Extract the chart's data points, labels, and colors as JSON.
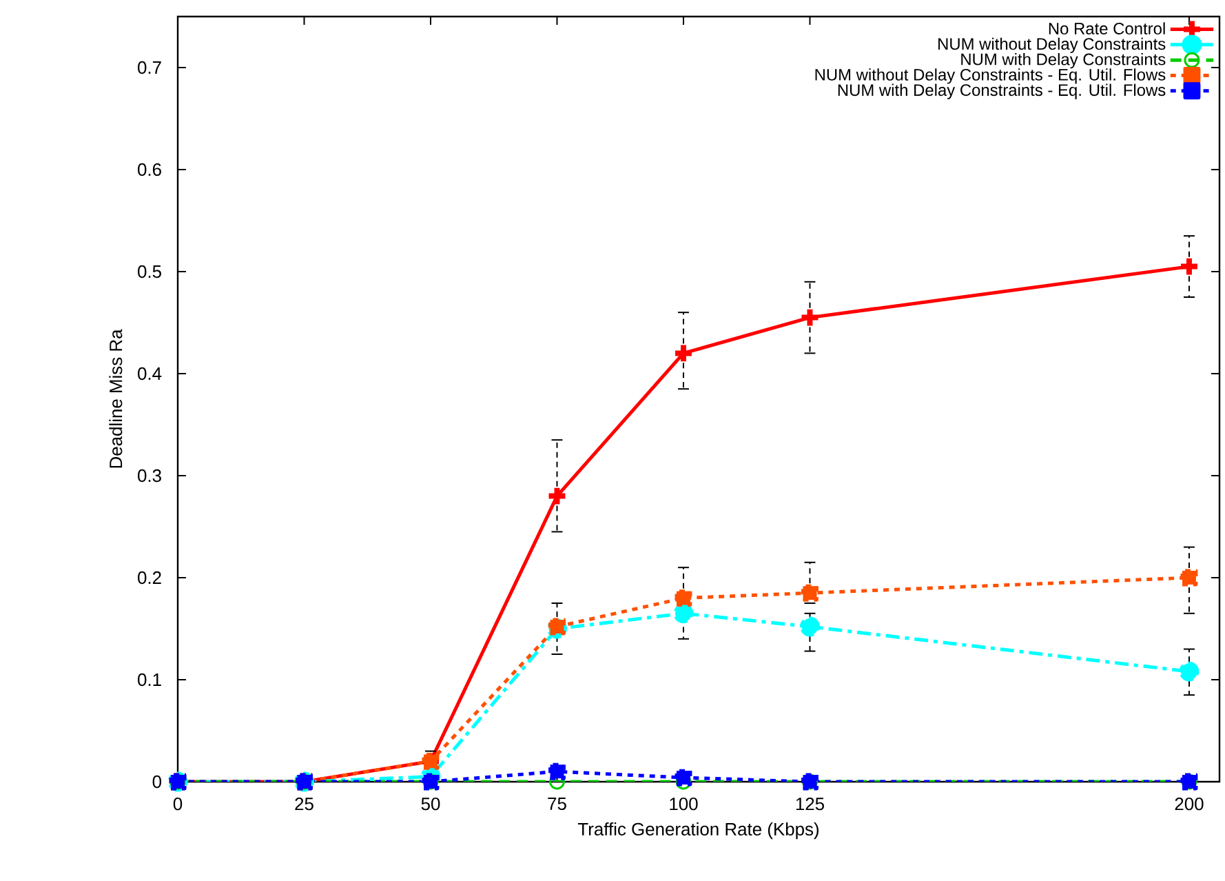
{
  "chart_data": {
    "type": "line",
    "xlabel": "Traffic Generation Rate (Kbps)",
    "ylabel": "Deadline Miss Ra",
    "x": [
      0,
      25,
      50,
      75,
      100,
      125,
      200
    ],
    "xlim": [
      0,
      206
    ],
    "xticks": [
      0,
      25,
      50,
      75,
      100,
      125,
      200
    ],
    "ylim": [
      0,
      0.75
    ],
    "yticks": [
      0,
      0.1,
      0.2,
      0.3,
      0.4,
      0.5,
      0.6,
      0.7
    ],
    "legend": "top right",
    "grid": false,
    "series": [
      {
        "name": "No Rate Control",
        "color": "#ff0000",
        "line_style": "solid",
        "marker": "cross",
        "values": [
          0,
          0,
          0.02,
          0.28,
          0.42,
          0.455,
          0.505
        ],
        "errors": [
          null,
          null,
          0.01,
          [
            0.245,
            0.335
          ],
          [
            0.385,
            0.46
          ],
          [
            0.42,
            0.49
          ],
          [
            0.475,
            0.535
          ]
        ]
      },
      {
        "name": "NUM without Delay Constraints",
        "color": "#00ffff",
        "line_style": "dashdot",
        "marker": "circle",
        "values": [
          0,
          0,
          0.005,
          0.15,
          0.165,
          0.152,
          0.108
        ],
        "errors": [
          null,
          null,
          null,
          null,
          null,
          [
            0.128,
            0.165
          ],
          [
            0.085,
            0.13
          ]
        ]
      },
      {
        "name": "NUM with Delay Constraints",
        "color": "#00cc00",
        "line_style": "dashed",
        "marker": "open circle",
        "values": [
          0,
          0,
          0,
          0,
          0,
          0,
          0
        ]
      },
      {
        "name": "NUM without Delay Constraints - Eq. Util. Flows",
        "color": "#ff5000",
        "line_style": "dotted",
        "marker": "square",
        "values": [
          0,
          0,
          0.02,
          0.152,
          0.18,
          0.185,
          0.2
        ],
        "errors": [
          null,
          null,
          null,
          [
            0.125,
            0.175
          ],
          [
            0.14,
            0.21
          ],
          [
            0.175,
            0.215
          ],
          [
            0.165,
            0.23
          ]
        ]
      },
      {
        "name": "NUM with Delay Constraints - Eq. Util. Flows",
        "color": "#0000ff",
        "line_style": "dotted",
        "marker": "square",
        "values": [
          0,
          0,
          0,
          0.01,
          0.004,
          0,
          0
        ]
      }
    ]
  }
}
